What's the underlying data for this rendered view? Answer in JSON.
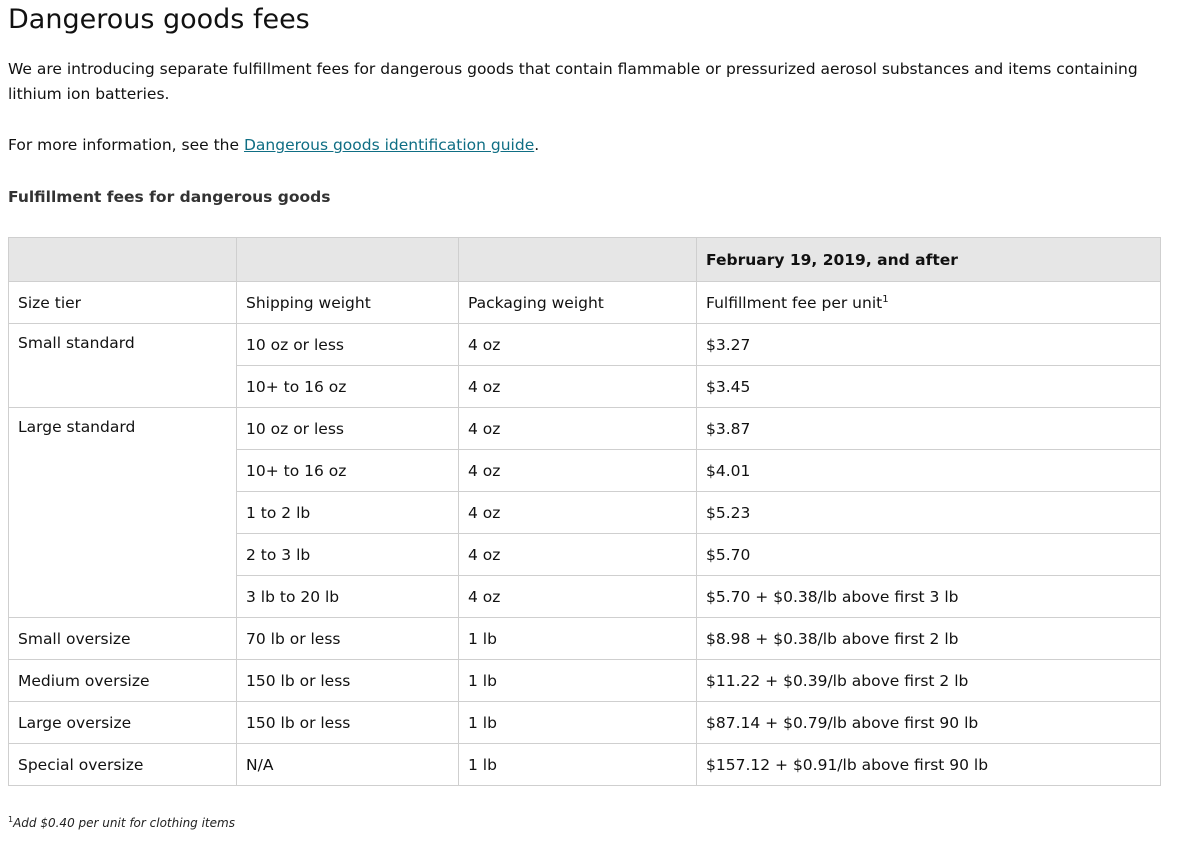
{
  "title": "Dangerous goods fees",
  "intro": "We are introducing separate fulfillment fees for dangerous goods that contain flammable or pressurized aerosol substances and items containing lithium ion batteries.",
  "more_info": {
    "prefix": "For more information, see the ",
    "link_text": "Dangerous goods identification guide",
    "suffix": "."
  },
  "subheading": "Fulfillment fees for dangerous goods",
  "table": {
    "date_header": "February 19, 2019, and after",
    "headers": {
      "size_tier": "Size tier",
      "shipping_weight": "Shipping weight",
      "packaging_weight": "Packaging weight",
      "fee": "Fulfillment fee per unit",
      "fee_note_mark": "1"
    },
    "small_standard": {
      "tier": "Small standard",
      "rows": [
        {
          "shipping": "10 oz or less",
          "packaging": "4 oz",
          "fee": "$3.27"
        },
        {
          "shipping": "10+ to 16 oz",
          "packaging": "4 oz",
          "fee": "$3.45"
        }
      ]
    },
    "large_standard": {
      "tier": "Large standard",
      "rows": [
        {
          "shipping": "10 oz or less",
          "packaging": "4 oz",
          "fee": "$3.87"
        },
        {
          "shipping": "10+ to 16 oz",
          "packaging": "4 oz",
          "fee": "$4.01"
        },
        {
          "shipping": "1 to 2 lb",
          "packaging": "4 oz",
          "fee": "$5.23"
        },
        {
          "shipping": "2 to 3 lb",
          "packaging": "4 oz",
          "fee": "$5.70"
        },
        {
          "shipping": "3 lb to 20 lb",
          "packaging": "4 oz",
          "fee": "$5.70 + $0.38/lb above first 3 lb"
        }
      ]
    },
    "small_oversize": {
      "tier": "Small oversize",
      "shipping": "70 lb or less",
      "packaging": "1 lb",
      "fee": "$8.98 + $0.38/lb above first 2 lb"
    },
    "medium_oversize": {
      "tier": "Medium oversize",
      "shipping": "150 lb or less",
      "packaging": "1 lb",
      "fee": "$11.22 + $0.39/lb above first 2 lb"
    },
    "large_oversize": {
      "tier": "Large oversize",
      "shipping": "150 lb or less",
      "packaging": "1 lb",
      "fee": "$87.14 + $0.79/lb above first 90 lb"
    },
    "special_oversize": {
      "tier": "Special oversize",
      "shipping": "N/A",
      "packaging": "1 lb",
      "fee": "$157.12 + $0.91/lb above first 90 lb"
    }
  },
  "footnote": {
    "mark": "1",
    "text": "Add $0.40 per unit for clothing items"
  },
  "colors": {
    "link": "#0f6e84",
    "header_bg": "#e6e6e6",
    "border": "#cfcfcf"
  }
}
